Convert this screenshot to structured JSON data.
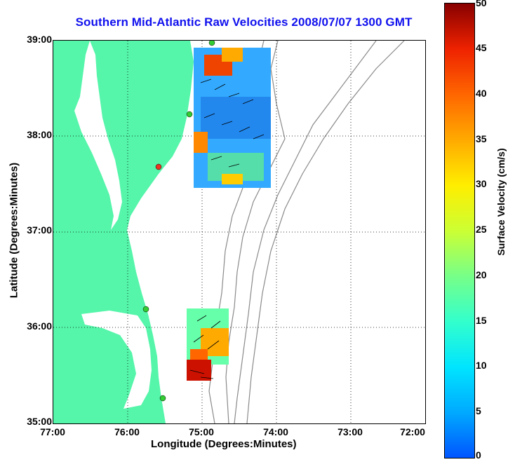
{
  "title": "Southern Mid-Atlantic Raw Velocities 2008/07/07 1300 GMT",
  "axes": {
    "xlabel": "Longitude (Degrees:Minutes)",
    "ylabel": "Latitude (Degrees:Minutes)",
    "xticks": [
      "77:00",
      "76:00",
      "75:00",
      "74:00",
      "73:00",
      "72:00"
    ],
    "yticks": [
      "39:00",
      "38:00",
      "37:00",
      "36:00",
      "35:00"
    ]
  },
  "colorbar": {
    "label": "Surface Velocity (cm/s)",
    "ticks": [
      "50",
      "45",
      "40",
      "35",
      "30",
      "25",
      "20",
      "15",
      "10",
      "5",
      "0"
    ],
    "range": [
      0,
      50
    ]
  },
  "colors": {
    "land": "#55f5aa",
    "title": "#1010ee",
    "station_active": "#33cc33",
    "station_inactive": "#ee3322"
  }
}
